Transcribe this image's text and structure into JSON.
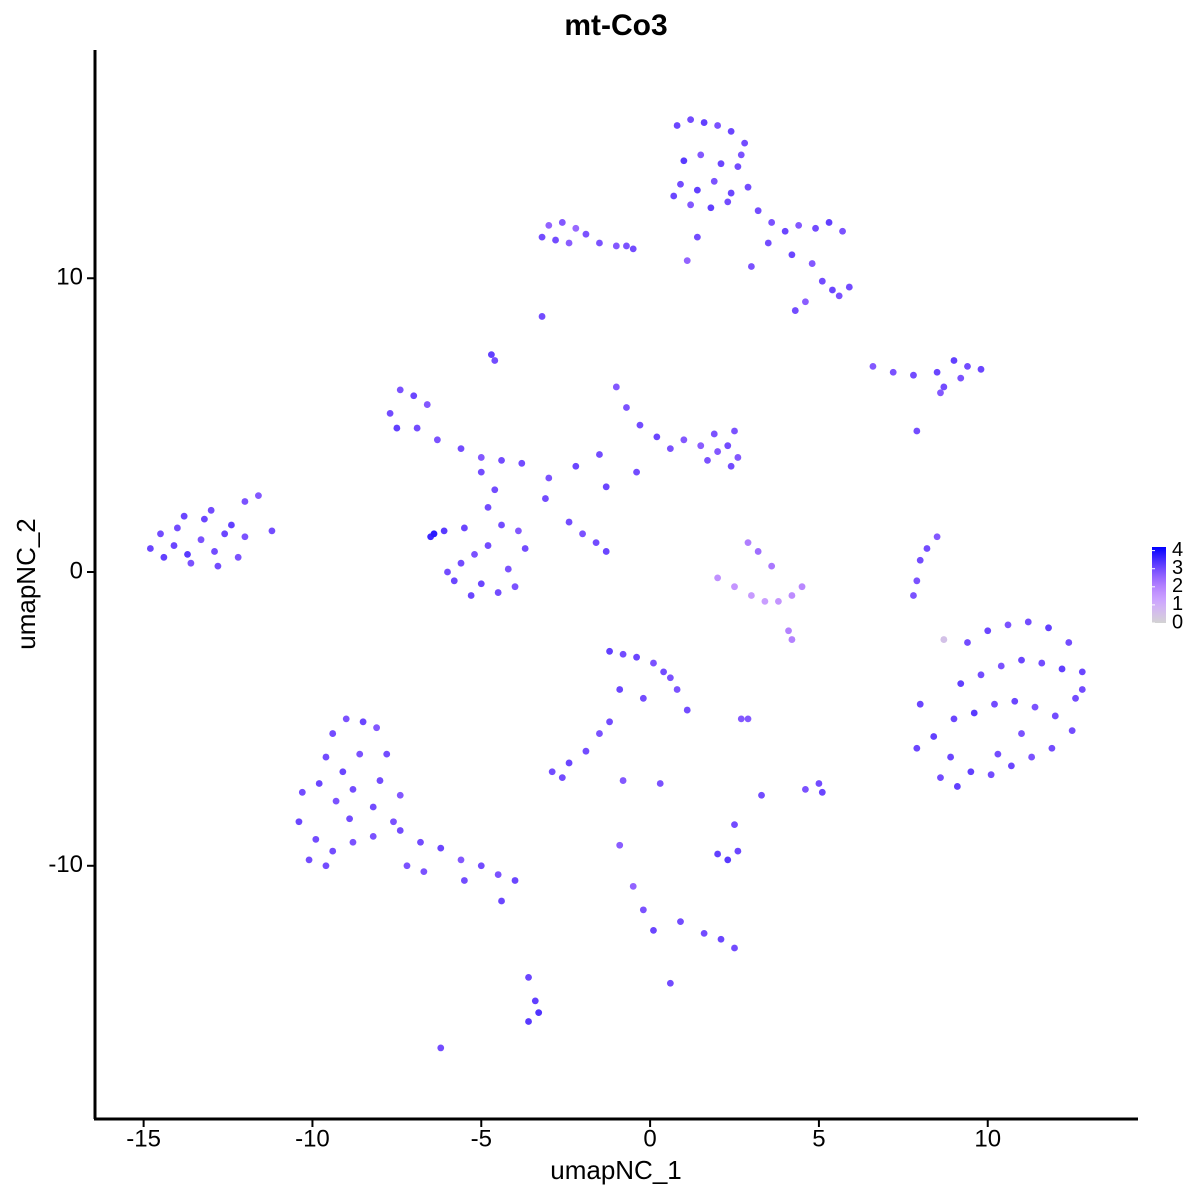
{
  "chart_data": {
    "type": "scatter",
    "title": "mt-Co3",
    "x_label": "umapNC_1",
    "y_label": "umapNC_2",
    "xlim": [
      -16.44,
      14.45
    ],
    "ylim": [
      -18.62,
      17.77
    ],
    "xticks": [
      -15,
      -10,
      -5,
      0,
      5,
      10
    ],
    "yticks": [
      -10,
      0,
      10
    ],
    "color_low": "#d3d3d3",
    "color_high": "#0000ff",
    "color_lim": [
      0,
      4.2
    ],
    "color_ticks": [
      0,
      1,
      2,
      3,
      4
    ],
    "x": [
      0.8,
      1.2,
      1.6,
      2.0,
      2.4,
      2.8,
      1.0,
      1.5,
      2.1,
      2.6,
      0.9,
      1.4,
      1.9,
      2.4,
      2.9,
      1.2,
      1.8,
      2.3,
      0.7,
      2.7,
      3.2,
      3.6,
      4.0,
      4.4,
      4.9,
      5.3,
      5.7,
      3.5,
      4.2,
      4.8,
      5.1,
      5.4,
      5.6,
      5.9,
      4.6,
      4.3,
      3.0,
      1.4,
      1.1,
      -0.5,
      -3.0,
      -2.6,
      -2.2,
      -1.9,
      -2.8,
      -2.4,
      -1.5,
      -1.0,
      -3.2,
      -0.7,
      -3.2,
      -4.7,
      -4.6,
      6.6,
      7.2,
      7.8,
      8.5,
      9.0,
      9.4,
      9.8,
      9.2,
      8.7,
      8.6,
      7.9,
      -14.8,
      -14.4,
      -14.0,
      -13.6,
      -13.2,
      -12.8,
      -12.4,
      -12.0,
      -11.6,
      -11.2,
      -14.5,
      -14.1,
      -13.7,
      -13.3,
      -12.9,
      -12.6,
      -12.2,
      -13.0,
      -13.8,
      -12.0,
      -7.7,
      -7.4,
      -7.0,
      -6.6,
      -7.5,
      -6.9,
      -6.3,
      -5.6,
      -5.0,
      -4.4,
      -3.8,
      -3.0,
      -2.2,
      -1.5,
      -1.0,
      -0.7,
      -0.3,
      0.2,
      0.6,
      1.0,
      1.5,
      1.9,
      2.3,
      2.6,
      1.7,
      2.4,
      -0.4,
      -1.3,
      2.0,
      2.5,
      -6.5,
      -6.1,
      -5.6,
      -5.0,
      -4.5,
      -4.0,
      -3.7,
      -5.8,
      -5.2,
      -4.4,
      -4.8,
      -4.2,
      -5.5,
      -6.0,
      -3.9,
      -4.6,
      -5.3,
      -5.0,
      -6.4,
      -4.8,
      -2.4,
      -2.0,
      -1.6,
      -1.3,
      -3.1,
      2.0,
      2.5,
      3.0,
      3.4,
      3.8,
      4.2,
      4.5,
      3.6,
      3.2,
      2.9,
      4.1,
      7.9,
      8.0,
      8.2,
      8.5,
      7.8,
      9.4,
      10.0,
      10.6,
      11.2,
      11.8,
      12.4,
      12.8,
      9.2,
      9.8,
      10.4,
      11.0,
      11.6,
      12.2,
      12.6,
      9.0,
      9.6,
      10.2,
      10.8,
      11.4,
      12.0,
      12.5,
      8.9,
      9.5,
      10.1,
      10.7,
      11.3,
      11.9,
      8.0,
      8.4,
      8.6,
      7.9,
      10.3,
      11.0,
      9.1,
      12.8,
      8.7,
      -9.4,
      -9.0,
      -8.5,
      -8.1,
      -7.8,
      -9.6,
      -9.1,
      -8.6,
      -8.0,
      -7.4,
      -10.3,
      -9.8,
      -9.3,
      -8.8,
      -8.2,
      -7.6,
      -10.4,
      -9.9,
      -9.4,
      -8.8,
      -8.2,
      -7.4,
      -6.8,
      -6.2,
      -5.6,
      -5.0,
      -4.5,
      -4.0,
      -9.6,
      -10.1,
      -6.7,
      -5.5,
      -4.4,
      -8.9,
      -7.2,
      -1.2,
      -0.8,
      -0.4,
      0.1,
      0.4,
      0.8,
      1.1,
      -0.9,
      -0.2,
      0.6,
      -1.2,
      -1.5,
      -1.9,
      -2.4,
      -2.9,
      -2.6,
      -0.8,
      0.3,
      2.0,
      2.3,
      2.6,
      2.5,
      2.7,
      -0.9,
      -0.5,
      -0.2,
      0.1,
      0.9,
      1.6,
      2.1,
      2.5,
      0.6,
      -3.6,
      -3.4,
      -3.3,
      -3.6,
      -6.2,
      3.3,
      5.0,
      5.1,
      4.6,
      4.2,
      2.9
    ],
    "y": [
      15.2,
      15.4,
      15.3,
      15.2,
      15.0,
      14.6,
      14.0,
      14.2,
      13.9,
      13.8,
      13.2,
      13.0,
      13.3,
      12.9,
      13.1,
      12.5,
      12.4,
      12.6,
      12.8,
      14.2,
      12.3,
      11.9,
      11.6,
      11.8,
      11.7,
      11.9,
      11.6,
      11.2,
      10.8,
      10.5,
      9.9,
      9.6,
      9.4,
      9.7,
      9.2,
      8.9,
      10.4,
      11.4,
      10.6,
      11.0,
      11.8,
      11.9,
      11.7,
      11.5,
      11.3,
      11.2,
      11.2,
      11.1,
      11.4,
      11.1,
      8.7,
      7.4,
      7.2,
      7.0,
      6.8,
      6.7,
      6.8,
      7.2,
      7.0,
      6.9,
      6.6,
      6.3,
      6.1,
      4.8,
      0.8,
      0.5,
      1.5,
      0.3,
      1.8,
      0.2,
      1.6,
      1.2,
      2.6,
      1.4,
      1.3,
      0.9,
      0.6,
      1.1,
      0.7,
      1.3,
      0.5,
      2.1,
      1.9,
      2.4,
      5.4,
      6.2,
      6.0,
      5.7,
      4.9,
      4.9,
      4.5,
      4.2,
      3.9,
      3.8,
      3.7,
      3.2,
      3.6,
      4.0,
      6.3,
      5.6,
      5.0,
      4.6,
      4.2,
      4.5,
      4.3,
      4.7,
      4.3,
      3.9,
      3.8,
      3.6,
      3.4,
      2.9,
      4.1,
      4.8,
      1.2,
      1.4,
      0.3,
      -0.4,
      -0.7,
      -0.5,
      0.8,
      -0.3,
      0.6,
      1.6,
      2.2,
      0.1,
      1.5,
      0.0,
      1.4,
      2.8,
      -0.8,
      3.4,
      1.3,
      0.9,
      1.7,
      1.3,
      1.0,
      0.7,
      2.5,
      -0.2,
      -0.5,
      -0.8,
      -1.0,
      -1.0,
      -0.8,
      -0.5,
      0.2,
      0.7,
      1.0,
      -2.0,
      -0.3,
      0.4,
      0.8,
      1.2,
      -0.8,
      -2.4,
      -2.0,
      -1.8,
      -1.7,
      -1.9,
      -2.4,
      -3.4,
      -3.8,
      -3.5,
      -3.2,
      -3.0,
      -3.1,
      -3.3,
      -4.3,
      -5.0,
      -4.8,
      -4.5,
      -4.4,
      -4.6,
      -4.9,
      -5.4,
      -6.3,
      -6.8,
      -6.9,
      -6.6,
      -6.3,
      -6.0,
      -4.5,
      -5.6,
      -7.0,
      -6.0,
      -6.2,
      -5.5,
      -7.3,
      -4.0,
      -2.3,
      -5.5,
      -5.0,
      -5.1,
      -5.3,
      -6.2,
      -6.3,
      -6.8,
      -6.2,
      -7.1,
      -7.6,
      -7.5,
      -7.2,
      -7.8,
      -7.4,
      -8.0,
      -8.5,
      -8.5,
      -9.1,
      -9.5,
      -9.2,
      -9.0,
      -8.8,
      -9.2,
      -9.4,
      -9.8,
      -10.0,
      -10.3,
      -10.5,
      -10.0,
      -9.8,
      -10.2,
      -10.5,
      -11.2,
      -8.4,
      -10.0,
      -2.7,
      -2.8,
      -2.9,
      -3.1,
      -3.4,
      -4.0,
      -4.7,
      -4.0,
      -4.3,
      -3.6,
      -5.1,
      -5.5,
      -6.1,
      -6.5,
      -6.8,
      -7.0,
      -7.1,
      -7.2,
      -9.6,
      -9.8,
      -9.5,
      -8.6,
      -5.0,
      -9.3,
      -10.7,
      -11.5,
      -12.2,
      -11.9,
      -12.3,
      -12.5,
      -12.8,
      -14.0,
      -13.8,
      -14.6,
      -15.0,
      -15.3,
      -16.2,
      -7.6,
      -7.2,
      -7.5,
      -7.4,
      -2.3,
      -5.0
    ],
    "values": [
      3.1,
      3.0,
      3.2,
      2.9,
      3.1,
      3.0,
      3.3,
      2.8,
      3.1,
      3.0,
      3.0,
      3.2,
      2.9,
      3.1,
      3.0,
      2.8,
      3.2,
      3.0,
      3.1,
      2.9,
      3.0,
      2.9,
      3.1,
      2.8,
      3.0,
      3.2,
      2.9,
      3.0,
      3.1,
      2.8,
      3.0,
      3.1,
      2.9,
      3.0,
      2.7,
      3.0,
      2.9,
      3.0,
      2.6,
      3.0,
      2.6,
      2.8,
      2.5,
      2.9,
      3.0,
      2.7,
      2.9,
      2.8,
      3.0,
      2.9,
      3.0,
      3.2,
      3.0,
      2.8,
      2.9,
      3.0,
      3.1,
      3.2,
      3.0,
      3.1,
      2.9,
      3.0,
      2.8,
      3.0,
      3.1,
      3.2,
      3.0,
      2.9,
      3.1,
      3.0,
      3.2,
      2.9,
      2.8,
      3.0,
      3.0,
      3.1,
      3.3,
      2.9,
      3.0,
      3.1,
      2.9,
      3.0,
      3.1,
      2.9,
      3.0,
      2.9,
      3.1,
      2.8,
      3.2,
      3.0,
      2.9,
      3.0,
      2.8,
      3.0,
      3.0,
      2.9,
      3.1,
      3.0,
      2.8,
      2.9,
      3.0,
      3.1,
      2.9,
      2.8,
      2.7,
      2.9,
      3.0,
      2.8,
      2.9,
      3.0,
      3.0,
      3.1,
      2.8,
      2.9,
      3.6,
      3.3,
      3.0,
      3.1,
      3.0,
      2.9,
      3.0,
      3.1,
      2.9,
      3.0,
      3.0,
      2.9,
      3.1,
      3.0,
      2.8,
      3.0,
      3.1,
      3.0,
      3.8,
      3.0,
      3.0,
      2.9,
      3.0,
      3.1,
      3.0,
      1.7,
      1.6,
      1.5,
      1.4,
      1.6,
      1.8,
      1.9,
      2.2,
      2.4,
      2.1,
      2.0,
      2.9,
      3.0,
      3.0,
      2.8,
      2.9,
      3.0,
      3.1,
      2.9,
      3.0,
      3.2,
      3.0,
      3.1,
      3.2,
      3.0,
      2.9,
      3.1,
      3.0,
      3.2,
      3.0,
      3.1,
      3.3,
      3.0,
      3.1,
      2.9,
      3.0,
      3.0,
      3.1,
      3.2,
      3.0,
      3.1,
      2.9,
      3.0,
      3.1,
      3.2,
      3.0,
      3.1,
      3.0,
      2.9,
      3.2,
      3.0,
      0.5,
      3.0,
      2.9,
      3.1,
      2.8,
      3.0,
      3.0,
      3.1,
      2.9,
      3.0,
      2.8,
      3.0,
      3.1,
      2.9,
      3.0,
      3.0,
      2.9,
      3.1,
      3.0,
      3.0,
      2.9,
      2.9,
      3.0,
      3.0,
      3.1,
      2.8,
      3.0,
      2.9,
      3.1,
      3.0,
      3.0,
      2.9,
      3.0,
      3.1,
      3.0,
      2.9,
      3.2,
      3.0,
      3.1,
      2.9,
      3.0,
      2.9,
      3.0,
      3.1,
      3.0,
      2.9,
      3.0,
      2.9,
      3.0,
      3.1,
      3.0,
      3.0,
      2.8,
      2.9,
      3.2,
      3.3,
      3.1,
      3.0,
      2.8,
      2.7,
      2.6,
      2.9,
      3.1,
      3.0,
      3.0,
      3.1,
      3.0,
      3.0,
      3.1,
      3.2,
      3.4,
      3.3,
      3.0,
      3.0,
      3.0,
      3.1,
      2.9,
      2.0,
      2.8
    ]
  }
}
